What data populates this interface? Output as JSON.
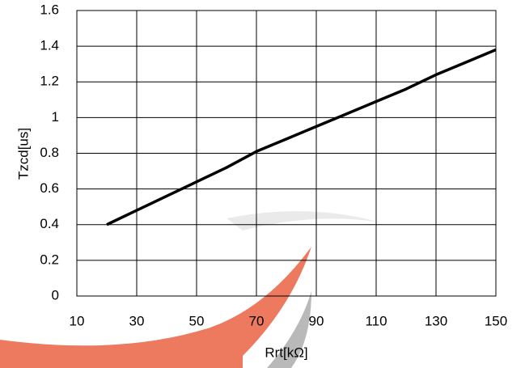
{
  "chart_data": {
    "type": "line",
    "x_label": "Rrt[kΩ]",
    "y_label": "Tzcd[us]",
    "x": [
      20,
      30,
      40,
      50,
      60,
      70,
      80,
      90,
      100,
      110,
      120,
      130,
      140,
      150
    ],
    "series": [
      {
        "name": "Tzcd",
        "color": "#000000",
        "values": [
          0.4,
          0.48,
          0.56,
          0.64,
          0.72,
          0.81,
          0.88,
          0.95,
          1.02,
          1.09,
          1.16,
          1.24,
          1.31,
          1.38
        ]
      }
    ],
    "xlim": [
      10,
      150
    ],
    "xticks": [
      10,
      30,
      50,
      70,
      90,
      110,
      130,
      150
    ],
    "ylim": [
      0,
      1.6
    ],
    "yticks": [
      0,
      0.2,
      0.4,
      0.6,
      0.8,
      1,
      1.2,
      1.4,
      1.6
    ],
    "grid": true
  }
}
